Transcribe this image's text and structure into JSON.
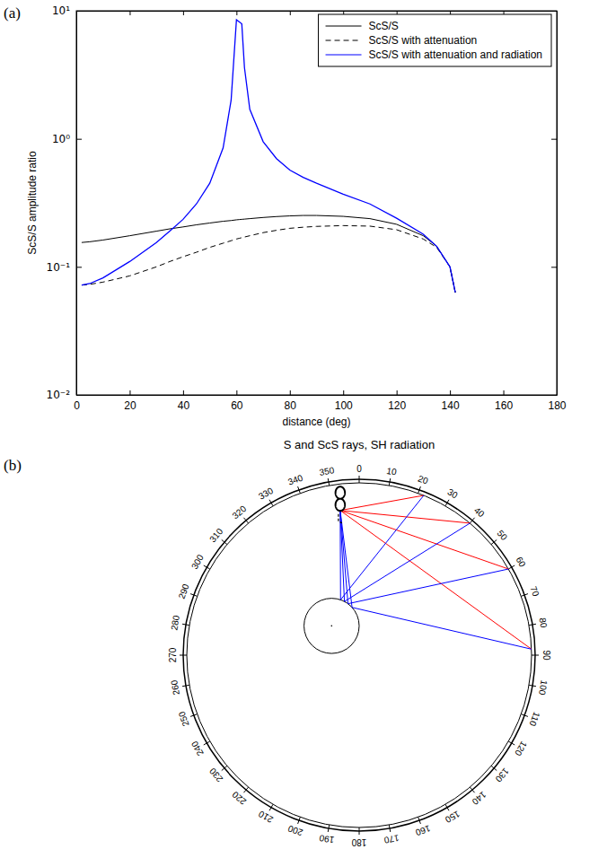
{
  "chart_data": [
    {
      "type": "line",
      "panel_label": "(a)",
      "x_label": "distance (deg)",
      "y_label": "ScS/S amplitude ratio",
      "log": "y",
      "grid": false,
      "legend": "top-right",
      "xlim": [
        0,
        180
      ],
      "xticks": [
        0,
        20,
        40,
        60,
        80,
        100,
        120,
        140,
        160,
        180
      ],
      "ylim": [
        0.01,
        10
      ],
      "yticks": [
        {
          "value": 0.01,
          "label": "10⁻²"
        },
        {
          "value": 0.1,
          "label": "10⁻¹"
        },
        {
          "value": 1,
          "label": "10⁰"
        },
        {
          "value": 10,
          "label": "10¹"
        }
      ],
      "x": [
        2,
        5,
        10,
        20,
        30,
        35,
        40,
        45,
        50,
        55,
        58,
        60,
        61,
        62,
        63,
        65,
        70,
        75,
        80,
        85,
        90,
        100,
        110,
        120,
        130,
        135,
        140,
        142
      ],
      "series": [
        {
          "name": "ScS/S",
          "color": "#000000",
          "line_style": "solid",
          "values": [
            0.155,
            0.157,
            0.162,
            0.175,
            0.19,
            0.198,
            0.205,
            0.213,
            0.22,
            0.227,
            0.23,
            0.233,
            0.234,
            0.235,
            0.236,
            0.238,
            0.243,
            0.247,
            0.25,
            0.252,
            0.252,
            0.248,
            0.238,
            0.215,
            0.175,
            0.145,
            0.1,
            0.063
          ]
        },
        {
          "name": "ScS/S with attenuation",
          "color": "#000000",
          "line_style": "dashed",
          "values": [
            0.072,
            0.073,
            0.076,
            0.085,
            0.1,
            0.11,
            0.12,
            0.13,
            0.142,
            0.153,
            0.16,
            0.165,
            0.167,
            0.169,
            0.171,
            0.175,
            0.185,
            0.193,
            0.2,
            0.204,
            0.207,
            0.21,
            0.208,
            0.195,
            0.165,
            0.142,
            0.1,
            0.063
          ]
        },
        {
          "name": "ScS/S with attenuation and radiation",
          "color": "#0000ff",
          "line_style": "solid",
          "values": [
            0.072,
            0.074,
            0.082,
            0.11,
            0.155,
            0.19,
            0.235,
            0.31,
            0.45,
            0.85,
            2,
            8.5,
            8.2,
            7.9,
            3.6,
            1.7,
            0.95,
            0.7,
            0.57,
            0.5,
            0.45,
            0.37,
            0.31,
            0.24,
            0.18,
            0.145,
            0.1,
            0.063
          ]
        }
      ]
    },
    {
      "type": "polar",
      "panel_label": "(b)",
      "title": "S and ScS rays, SH radiation",
      "xlim": [
        0,
        360
      ],
      "xticks": [
        0,
        10,
        20,
        30,
        40,
        50,
        60,
        70,
        80,
        90,
        100,
        110,
        120,
        130,
        140,
        150,
        160,
        170,
        180,
        190,
        200,
        210,
        220,
        230,
        240,
        250,
        260,
        270,
        280,
        290,
        300,
        310,
        320,
        330,
        340,
        350
      ],
      "series": [
        {
          "type": "direct",
          "color": "#ff0000",
          "values": [
            22,
            40,
            60,
            88
          ]
        },
        {
          "type": "reflected",
          "color": "#0000ff",
          "values": [
            22,
            40,
            60,
            88
          ]
        }
      ]
    }
  ]
}
